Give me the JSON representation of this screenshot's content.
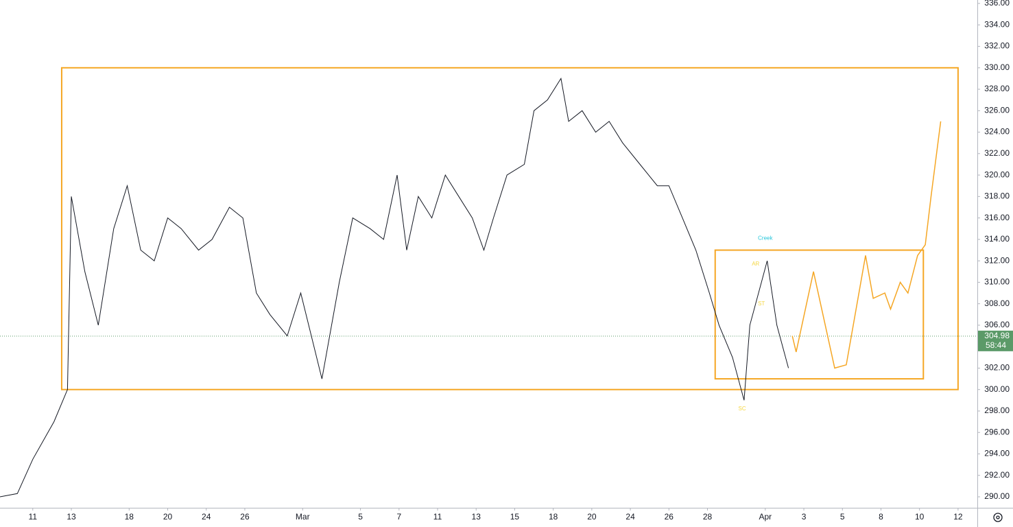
{
  "chart_data": {
    "type": "line",
    "xlim": [
      -1.7,
      49
    ],
    "ylim": [
      290,
      336
    ],
    "yticks": [
      {
        "value": 290,
        "label": "290.00"
      },
      {
        "value": 292,
        "label": "292.00"
      },
      {
        "value": 294,
        "label": "294.00"
      },
      {
        "value": 296,
        "label": "296.00"
      },
      {
        "value": 298,
        "label": "298.00"
      },
      {
        "value": 300,
        "label": "300.00"
      },
      {
        "value": 302,
        "label": "302.00"
      },
      {
        "value": 304,
        "label": "304.00"
      },
      {
        "value": 306,
        "label": "306.00"
      },
      {
        "value": 308,
        "label": "308.00"
      },
      {
        "value": 310,
        "label": "310.00"
      },
      {
        "value": 312,
        "label": "312.00"
      },
      {
        "value": 314,
        "label": "314.00"
      },
      {
        "value": 316,
        "label": "316.00"
      },
      {
        "value": 318,
        "label": "318.00"
      },
      {
        "value": 320,
        "label": "320.00"
      },
      {
        "value": 322,
        "label": "322.00"
      },
      {
        "value": 324,
        "label": "324.00"
      },
      {
        "value": 326,
        "label": "326.00"
      },
      {
        "value": 328,
        "label": "328.00"
      },
      {
        "value": 330,
        "label": "330.00"
      },
      {
        "value": 332,
        "label": "332.00"
      },
      {
        "value": 334,
        "label": "334.00"
      },
      {
        "value": 336,
        "label": "336.00"
      }
    ],
    "xticks": [
      {
        "value": 0,
        "label": "11"
      },
      {
        "value": 2,
        "label": "13"
      },
      {
        "value": 5,
        "label": "18"
      },
      {
        "value": 7,
        "label": "20"
      },
      {
        "value": 9,
        "label": "24"
      },
      {
        "value": 11,
        "label": "26"
      },
      {
        "value": 14,
        "label": "Mar"
      },
      {
        "value": 17,
        "label": "5"
      },
      {
        "value": 19,
        "label": "7"
      },
      {
        "value": 21,
        "label": "11"
      },
      {
        "value": 23,
        "label": "13"
      },
      {
        "value": 25,
        "label": "15"
      },
      {
        "value": 27,
        "label": "18"
      },
      {
        "value": 29,
        "label": "20"
      },
      {
        "value": 31,
        "label": "24"
      },
      {
        "value": 33,
        "label": "26"
      },
      {
        "value": 35,
        "label": "28"
      },
      {
        "value": 38,
        "label": "Apr"
      },
      {
        "value": 40,
        "label": "3"
      },
      {
        "value": 42,
        "label": "5"
      },
      {
        "value": 44,
        "label": "8"
      },
      {
        "value": 46,
        "label": "10"
      },
      {
        "value": 48,
        "label": "12"
      }
    ],
    "price": {
      "color": "#131722",
      "x": [
        -1.7,
        -0.8,
        0,
        1.1,
        1.8,
        2.0,
        2.7,
        3.4,
        4.2,
        4.9,
        5.6,
        6.3,
        7.0,
        7.7,
        8.6,
        9.3,
        10.2,
        10.9,
        11.6,
        12.3,
        13.2,
        13.9,
        15.0,
        15.9,
        16.6,
        17.5,
        18.2,
        18.9,
        19.4,
        20.0,
        20.7,
        21.4,
        22.1,
        22.8,
        23.4,
        23.9,
        24.6,
        25.5,
        26.0,
        26.7,
        27.4,
        27.8,
        28.5,
        29.2,
        29.9,
        30.6,
        31.5,
        32.4,
        33.0,
        33.7,
        34.4,
        35.1,
        35.6,
        36.3,
        36.9,
        37.2,
        37.8,
        38.1,
        38.6,
        39.2
      ],
      "values": [
        290,
        290.3,
        293.5,
        297,
        300,
        318,
        311,
        306,
        315,
        319,
        313,
        312,
        316,
        315,
        313,
        314,
        317,
        316,
        309,
        307,
        305,
        309,
        301,
        310,
        316,
        315,
        314,
        320,
        313,
        318,
        316,
        320,
        318,
        316,
        313,
        316,
        320,
        321,
        326,
        327,
        329,
        325,
        326,
        324,
        325,
        323,
        321,
        319,
        319,
        316,
        313,
        309,
        306,
        303,
        299,
        306,
        310,
        312,
        306,
        302
      ]
    },
    "projection": {
      "color": "#f5a623",
      "x": [
        39.4,
        39.6,
        40.5,
        41.6,
        42.2,
        43.2,
        43.6,
        44.2,
        44.5,
        45.0,
        45.4,
        45.9,
        46.3,
        46.6,
        47.1
      ],
      "values": [
        305,
        303.5,
        311,
        302,
        302.3,
        312.5,
        308.5,
        309,
        307.5,
        310,
        309,
        312.5,
        313.5,
        318,
        325
      ]
    },
    "boxes": [
      {
        "x0": 1.5,
        "x1": 48.0,
        "y0": 300,
        "y1": 330,
        "color": "#f5a623"
      },
      {
        "x0": 35.4,
        "x1": 46.2,
        "y0": 301,
        "y1": 313,
        "color": "#f5a623"
      }
    ],
    "annotations": [
      {
        "text": "Creek",
        "x": 38.0,
        "y": 314.1,
        "color": "#26c6da"
      },
      {
        "text": "AR",
        "x": 37.5,
        "y": 311.7,
        "color": "#f5d742"
      },
      {
        "text": "ST",
        "x": 37.8,
        "y": 308.0,
        "color": "#f5d742"
      },
      {
        "text": "SC",
        "x": 36.8,
        "y": 298.2,
        "color": "#f5d742"
      }
    ],
    "last_price": {
      "value": 304.98,
      "countdown": "58:44",
      "color": "#5b9a68"
    }
  }
}
